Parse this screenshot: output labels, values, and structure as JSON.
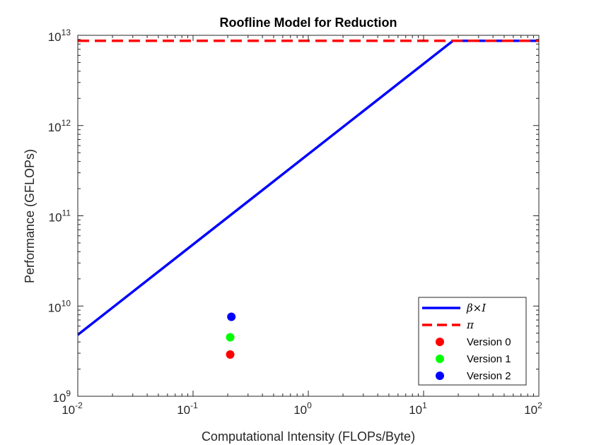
{
  "chart_data": {
    "type": "line",
    "title": "Roofline Model for Reduction",
    "xlabel": "Computational Intensity (FLOPs/Byte)",
    "ylabel": "Performance (GFLOPs)",
    "x_scale": "log",
    "y_scale": "log",
    "xlim": [
      0.01,
      100
    ],
    "ylim": [
      1000000000.0,
      10000000000000.0
    ],
    "x_ticks": [
      {
        "value": 0.01,
        "base": "10",
        "exp": "-2"
      },
      {
        "value": 0.1,
        "base": "10",
        "exp": "-1"
      },
      {
        "value": 1,
        "base": "10",
        "exp": "0"
      },
      {
        "value": 10,
        "base": "10",
        "exp": "1"
      },
      {
        "value": 100,
        "base": "10",
        "exp": "2"
      }
    ],
    "y_ticks": [
      {
        "value": 1000000000.0,
        "base": "10",
        "exp": "9"
      },
      {
        "value": 10000000000.0,
        "base": "10",
        "exp": "10"
      },
      {
        "value": 100000000000.0,
        "base": "10",
        "exp": "11"
      },
      {
        "value": 1000000000000.0,
        "base": "10",
        "exp": "12"
      },
      {
        "value": 10000000000000.0,
        "base": "10",
        "exp": "13"
      }
    ],
    "grid": false,
    "legend_position": "bottom-right",
    "series": [
      {
        "name": "β×I",
        "style": "solid-line",
        "color": "#0000ff",
        "x": [
          0.01,
          18,
          100
        ],
        "y": [
          4800000000.0,
          8700000000000.0,
          8700000000000.0
        ]
      },
      {
        "name": "π",
        "style": "dashed-line",
        "color": "#ff0000",
        "x": [
          0.01,
          100
        ],
        "y": [
          8700000000000.0,
          8700000000000.0
        ]
      },
      {
        "name": "Version 0",
        "style": "marker",
        "color": "#ff0000",
        "x": [
          0.21
        ],
        "y": [
          2900000000.0
        ]
      },
      {
        "name": "Version 1",
        "style": "marker",
        "color": "#00ff00",
        "x": [
          0.21
        ],
        "y": [
          4500000000.0
        ]
      },
      {
        "name": "Version 2",
        "style": "marker",
        "color": "#0000ff",
        "x": [
          0.215
        ],
        "y": [
          7600000000.0
        ]
      }
    ]
  }
}
